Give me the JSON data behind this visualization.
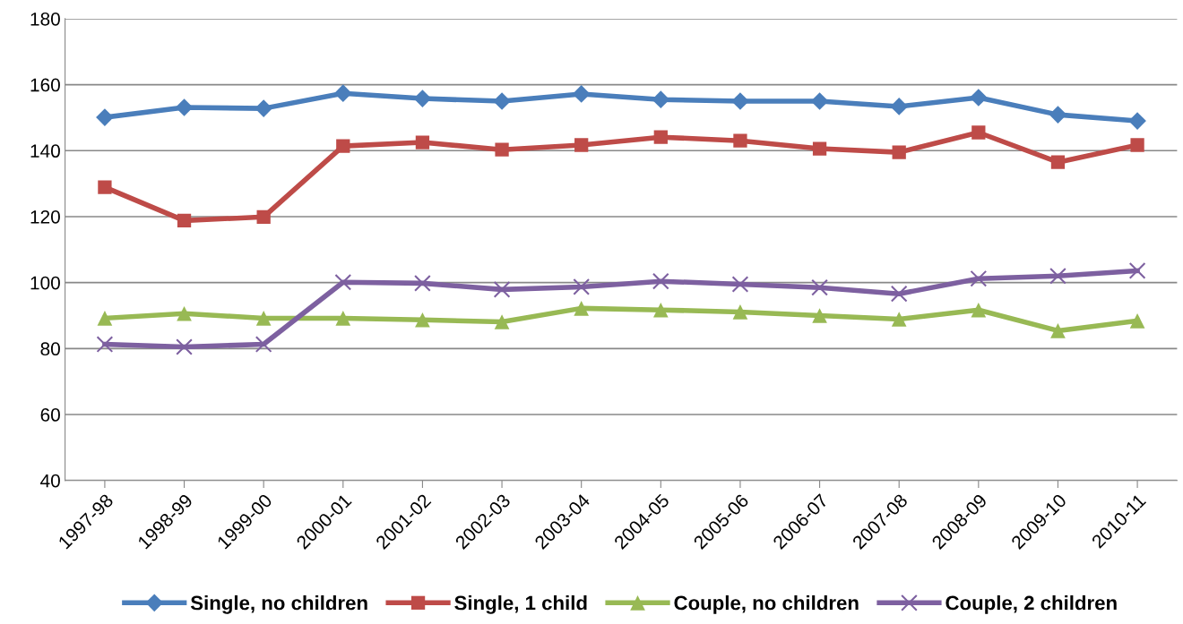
{
  "chart_data": {
    "type": "line",
    "categories": [
      "1997-98",
      "1998-99",
      "1999-00",
      "2000-01",
      "2001-02",
      "2002-03",
      "2003-04",
      "2004-05",
      "2005-06",
      "2006-07",
      "2007-08",
      "2008-09",
      "2009-10",
      "2010-11"
    ],
    "series": [
      {
        "name": "Single, no children",
        "color": "#4a7ebb",
        "marker": "diamond",
        "values": [
          150.1,
          153.1,
          152.8,
          157.4,
          155.8,
          155.0,
          157.2,
          155.5,
          155.0,
          155.0,
          153.4,
          156.1,
          150.9,
          149.0
        ]
      },
      {
        "name": "Single, 1 child",
        "color": "#be4b48",
        "marker": "square",
        "values": [
          128.9,
          118.8,
          119.9,
          141.4,
          142.5,
          140.3,
          141.7,
          144.1,
          143.0,
          140.6,
          139.5,
          145.5,
          136.5,
          141.7
        ]
      },
      {
        "name": "Couple, no children",
        "color": "#98b954",
        "marker": "triangle",
        "values": [
          89.2,
          90.6,
          89.2,
          89.2,
          88.7,
          88.1,
          92.2,
          91.7,
          91.1,
          90.0,
          88.9,
          91.7,
          85.4,
          88.4
        ]
      },
      {
        "name": "Couple, 2 children",
        "color": "#7d60a0",
        "marker": "cross",
        "values": [
          81.3,
          80.5,
          81.3,
          100.1,
          99.8,
          97.9,
          98.7,
          100.4,
          99.5,
          98.5,
          96.6,
          101.2,
          102.0,
          103.6
        ]
      }
    ],
    "ylim": [
      40,
      180
    ],
    "yticks": [
      40,
      60,
      80,
      100,
      120,
      140,
      160,
      180
    ],
    "grid": "y",
    "legend": "bottom",
    "line_style": "solid"
  }
}
